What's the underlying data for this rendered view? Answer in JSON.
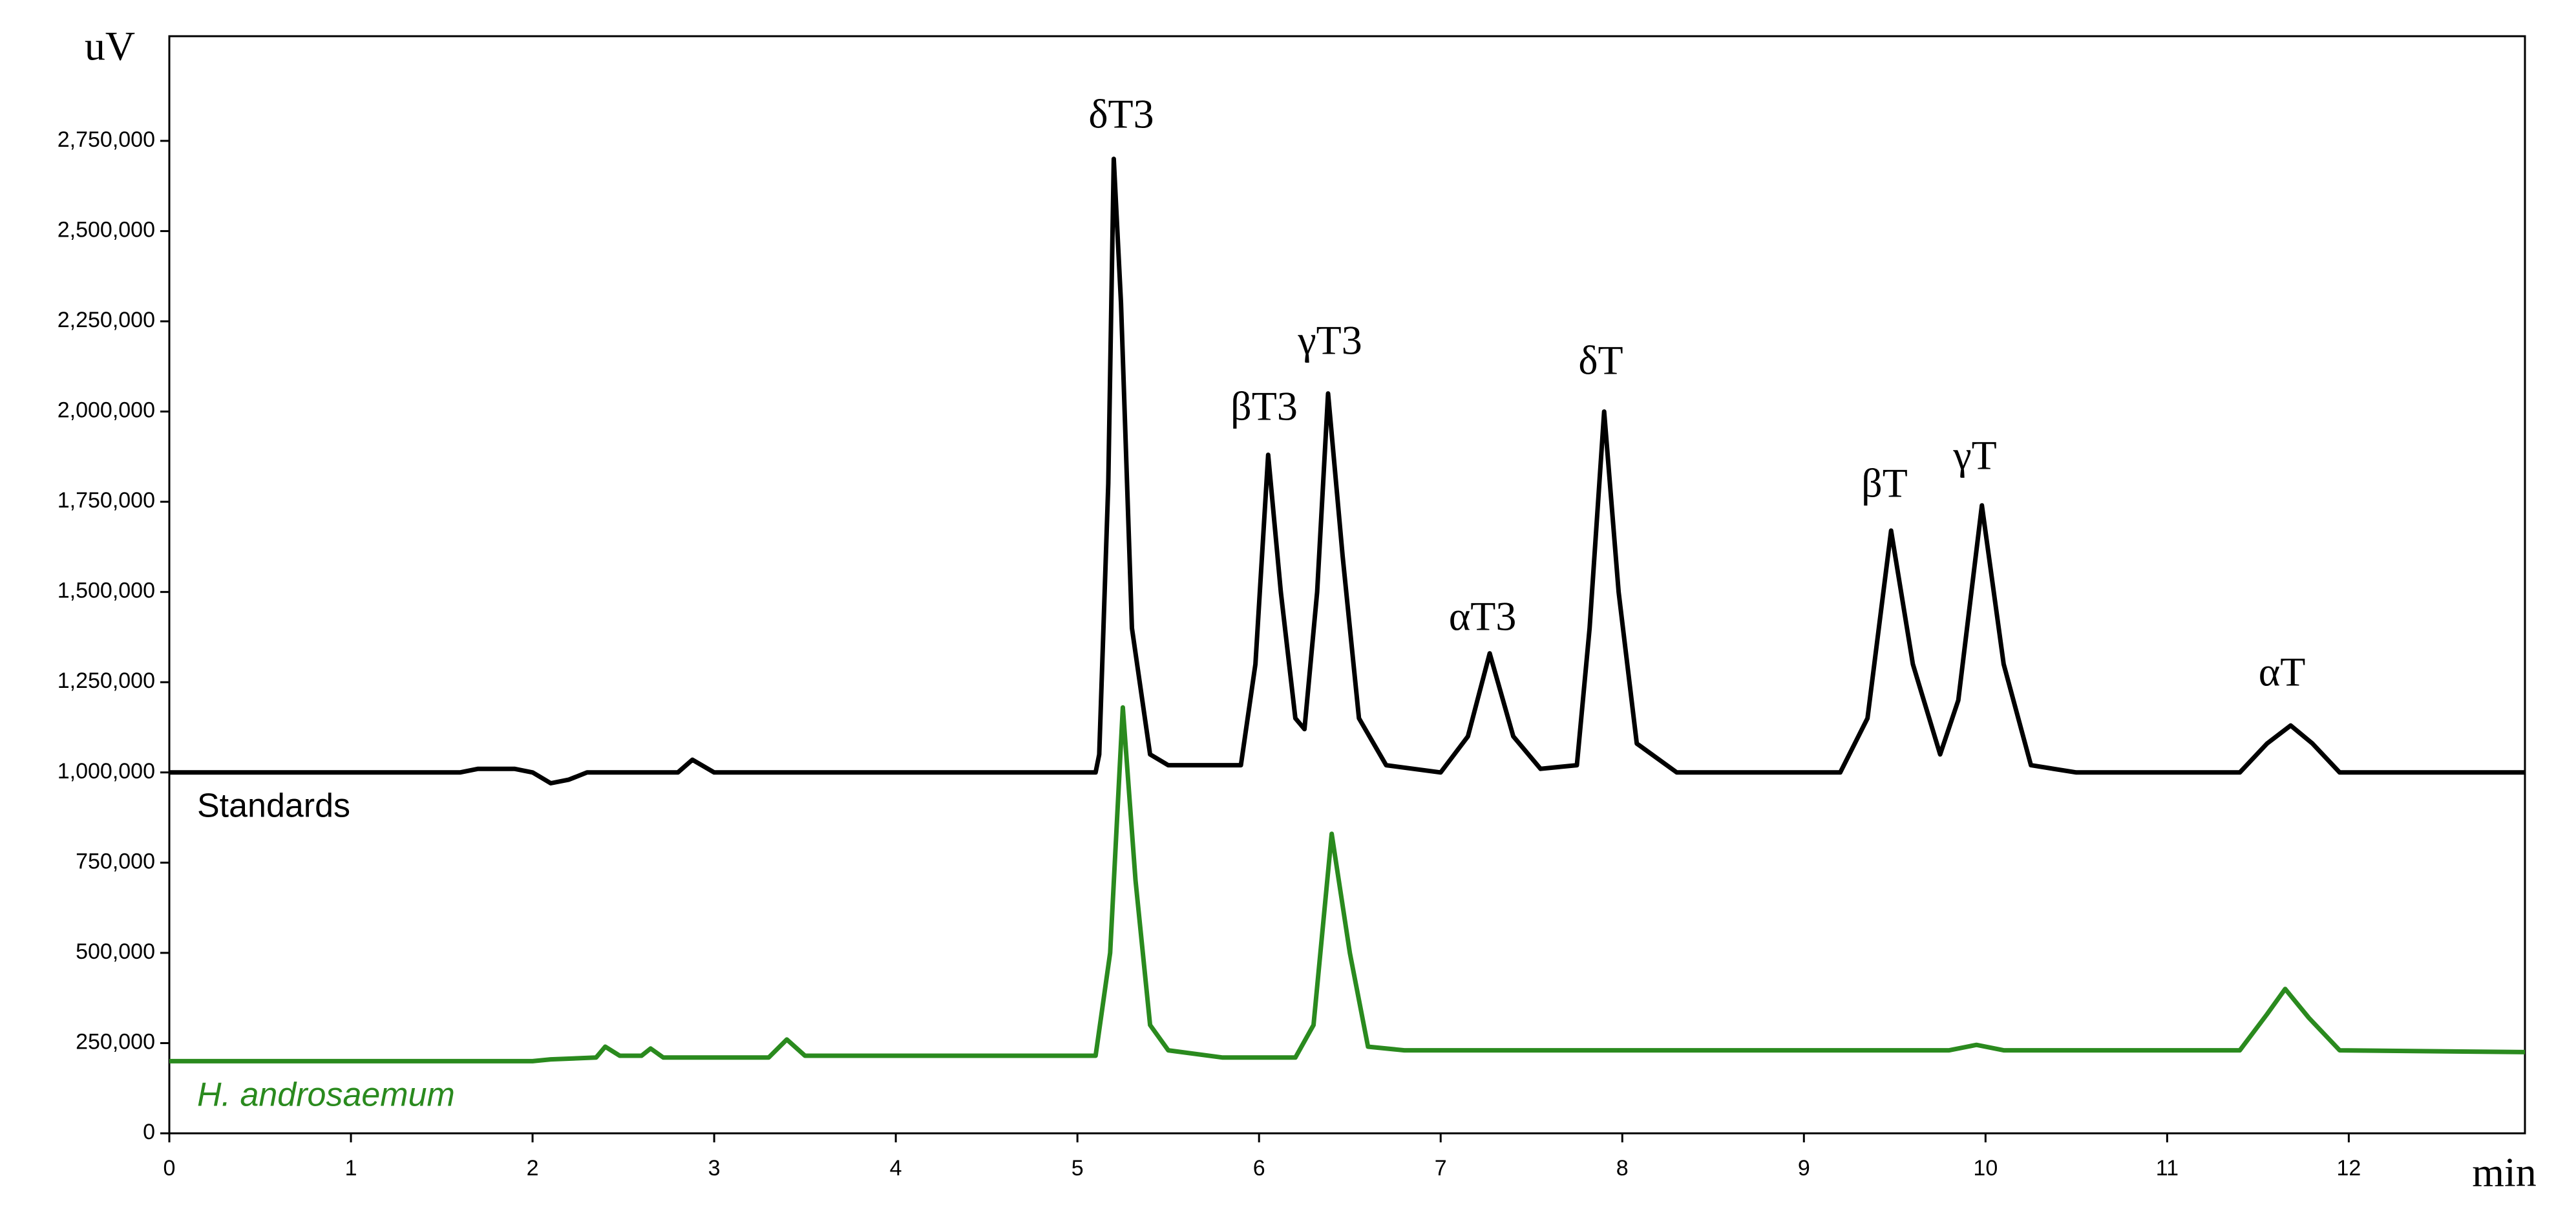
{
  "chart_data": {
    "type": "line",
    "y_label": "uV",
    "x_label": "min",
    "xlim": [
      0,
      12.97
    ],
    "ylim": [
      0,
      3040000
    ],
    "xticks": [
      0,
      1,
      2,
      3,
      4,
      5,
      6,
      7,
      8,
      9,
      10,
      11,
      12
    ],
    "yticks": [
      0,
      {
        "value": 250000,
        "label": "250,000"
      },
      {
        "value": 500000,
        "label": "500,000"
      },
      {
        "value": 750000,
        "label": "750,000"
      },
      {
        "value": 1000000,
        "label": "1,000,000"
      },
      {
        "value": 1250000,
        "label": "1,250,000"
      },
      {
        "value": 1500000,
        "label": "1,500,000"
      },
      {
        "value": 1750000,
        "label": "1,750,000"
      },
      {
        "value": 2000000,
        "label": "2,000,000"
      },
      {
        "value": 2250000,
        "label": "2,250,000"
      },
      {
        "value": 2500000,
        "label": "2,500,000"
      },
      {
        "value": 2750000,
        "label": "2,750,000"
      }
    ],
    "annotations": [
      "δT3",
      "βT3",
      "γT3",
      "αT3",
      "δT",
      "βT",
      "γT",
      "αT"
    ],
    "series": [
      {
        "name": "Standards",
        "color": "#000000",
        "x": [
          0,
          1.6,
          1.7,
          1.9,
          2.0,
          2.1,
          2.2,
          2.3,
          2.8,
          2.88,
          3.0,
          5.1,
          5.12,
          5.17,
          5.2,
          5.24,
          5.3,
          5.4,
          5.5,
          5.9,
          5.98,
          6.05,
          6.12,
          6.2,
          6.25,
          6.32,
          6.38,
          6.46,
          6.55,
          6.7,
          7.0,
          7.15,
          7.27,
          7.4,
          7.55,
          7.75,
          7.82,
          7.9,
          7.98,
          8.08,
          8.3,
          9.2,
          9.35,
          9.48,
          9.6,
          9.75,
          9.85,
          9.98,
          10.1,
          10.25,
          10.5,
          11.4,
          11.55,
          11.68,
          11.8,
          11.95,
          12.97
        ],
        "values": [
          1000000,
          1000000,
          1010000,
          1010000,
          1000000,
          970000,
          980000,
          1000000,
          1000000,
          1035000,
          1000000,
          1000000,
          1050000,
          1800000,
          2700000,
          2300000,
          1400000,
          1050000,
          1020000,
          1020000,
          1300000,
          1880000,
          1500000,
          1150000,
          1120000,
          1500000,
          2050000,
          1600000,
          1150000,
          1020000,
          1000000,
          1100000,
          1330000,
          1100000,
          1010000,
          1020000,
          1400000,
          2000000,
          1500000,
          1080000,
          1000000,
          1000000,
          1150000,
          1670000,
          1300000,
          1050000,
          1200000,
          1740000,
          1300000,
          1020000,
          1000000,
          1000000,
          1080000,
          1130000,
          1080000,
          1000000,
          1000000
        ]
      },
      {
        "name": "H. androsaemum",
        "color": "#2a8a1e",
        "x": [
          0,
          2.0,
          2.1,
          2.35,
          2.4,
          2.48,
          2.6,
          2.65,
          2.72,
          3.3,
          3.4,
          3.5,
          5.1,
          5.18,
          5.25,
          5.32,
          5.4,
          5.5,
          5.8,
          6.2,
          6.3,
          6.4,
          6.5,
          6.6,
          6.8,
          9.8,
          9.95,
          10.1,
          11.4,
          11.55,
          11.65,
          11.78,
          11.95,
          12.97
        ],
        "values": [
          200000,
          200000,
          205000,
          210000,
          240000,
          215000,
          215000,
          235000,
          210000,
          210000,
          260000,
          215000,
          215000,
          500000,
          1180000,
          700000,
          300000,
          230000,
          210000,
          210000,
          300000,
          830000,
          500000,
          240000,
          230000,
          230000,
          245000,
          230000,
          230000,
          330000,
          400000,
          320000,
          230000,
          225000
        ]
      }
    ]
  }
}
